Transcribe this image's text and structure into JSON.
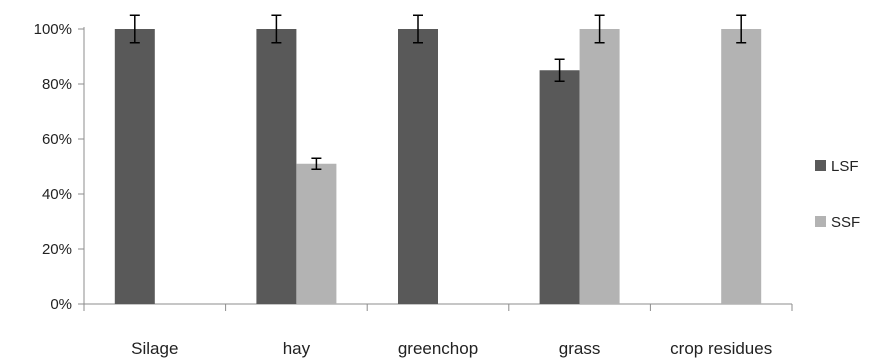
{
  "chart_data": {
    "type": "bar",
    "categories": [
      "Silage",
      "hay",
      "greenchop",
      "grass",
      "crop residues"
    ],
    "series": [
      {
        "name": "LSF",
        "values": [
          100,
          100,
          100,
          85,
          null
        ],
        "error": [
          5,
          5,
          5,
          4,
          null
        ],
        "color": "#595959"
      },
      {
        "name": "SSF",
        "values": [
          null,
          51,
          null,
          100,
          100
        ],
        "error": [
          null,
          2,
          null,
          5,
          5
        ],
        "color": "#b3b3b3"
      }
    ],
    "y_tick_labels": [
      "0%",
      "20%",
      "40%",
      "60%",
      "80%",
      "100%"
    ],
    "ylim": [
      0,
      100
    ],
    "y_unit": "%",
    "grid": false,
    "legend_position": "right"
  }
}
